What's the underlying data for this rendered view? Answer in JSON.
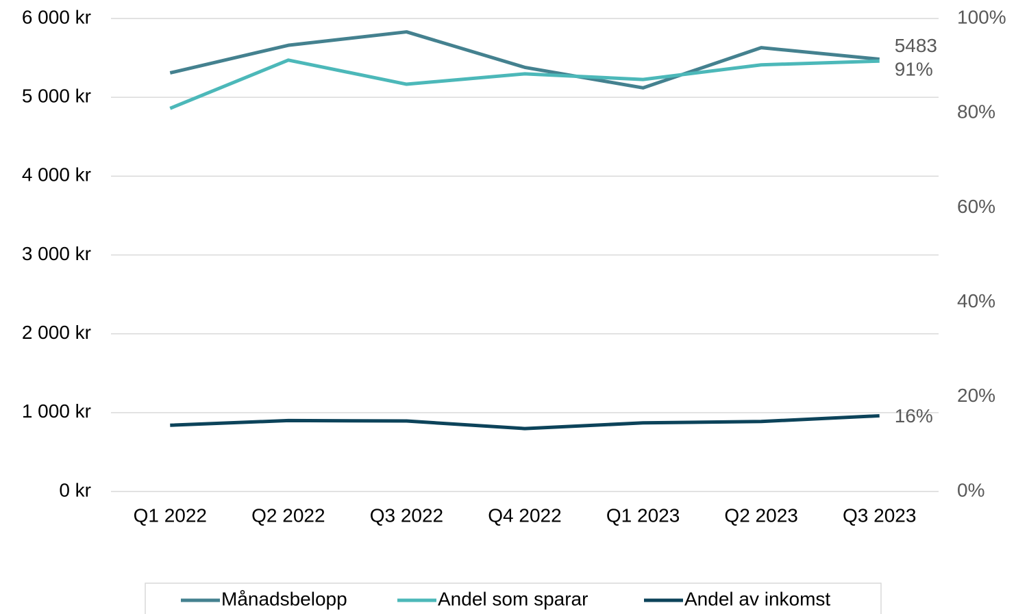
{
  "chart_data": {
    "type": "line",
    "categories": [
      "Q1 2022",
      "Q2 2022",
      "Q3 2022",
      "Q4 2022",
      "Q1 2023",
      "Q2 2023",
      "Q3 2023"
    ],
    "series": [
      {
        "name": "Månadsbelopp",
        "color": "#44818f",
        "values": [
          5310,
          5660,
          5830,
          5380,
          5120,
          5630,
          5483
        ],
        "value_labels": [
          null,
          null,
          null,
          null,
          null,
          null,
          "5483"
        ]
      },
      {
        "name": "Andel som sparar",
        "color": "#4cb8b9",
        "axis": "y2",
        "values": [
          81.0,
          91.2,
          86.1,
          88.3,
          87.1,
          90.2,
          91
        ],
        "value_labels": [
          null,
          null,
          null,
          null,
          null,
          null,
          "91%"
        ]
      },
      {
        "name": "Andel av inkomst",
        "color": "#0c435a",
        "axis": "y2",
        "values": [
          14.0,
          15.0,
          14.9,
          13.3,
          14.5,
          14.8,
          16
        ],
        "value_labels": [
          null,
          null,
          null,
          null,
          null,
          null,
          "16%"
        ]
      }
    ],
    "ylim": [
      0,
      6000
    ],
    "yticks": [
      {
        "value": 0,
        "label": "0 kr"
      },
      {
        "value": 1000,
        "label": "1 000 kr"
      },
      {
        "value": 2000,
        "label": "2 000 kr"
      },
      {
        "value": 3000,
        "label": "3 000 kr"
      },
      {
        "value": 4000,
        "label": "4 000 kr"
      },
      {
        "value": 5000,
        "label": "5 000 kr"
      },
      {
        "value": 6000,
        "label": "6 000 kr"
      }
    ],
    "y2lim": [
      0,
      100
    ],
    "y2ticks": [
      {
        "value": 0,
        "label": "0%"
      },
      {
        "value": 20,
        "label": "20%"
      },
      {
        "value": 40,
        "label": "40%"
      },
      {
        "value": 60,
        "label": "60%"
      },
      {
        "value": 80,
        "label": "80%"
      },
      {
        "value": 100,
        "label": "100%"
      }
    ],
    "grid": true,
    "legend": "bottom"
  }
}
